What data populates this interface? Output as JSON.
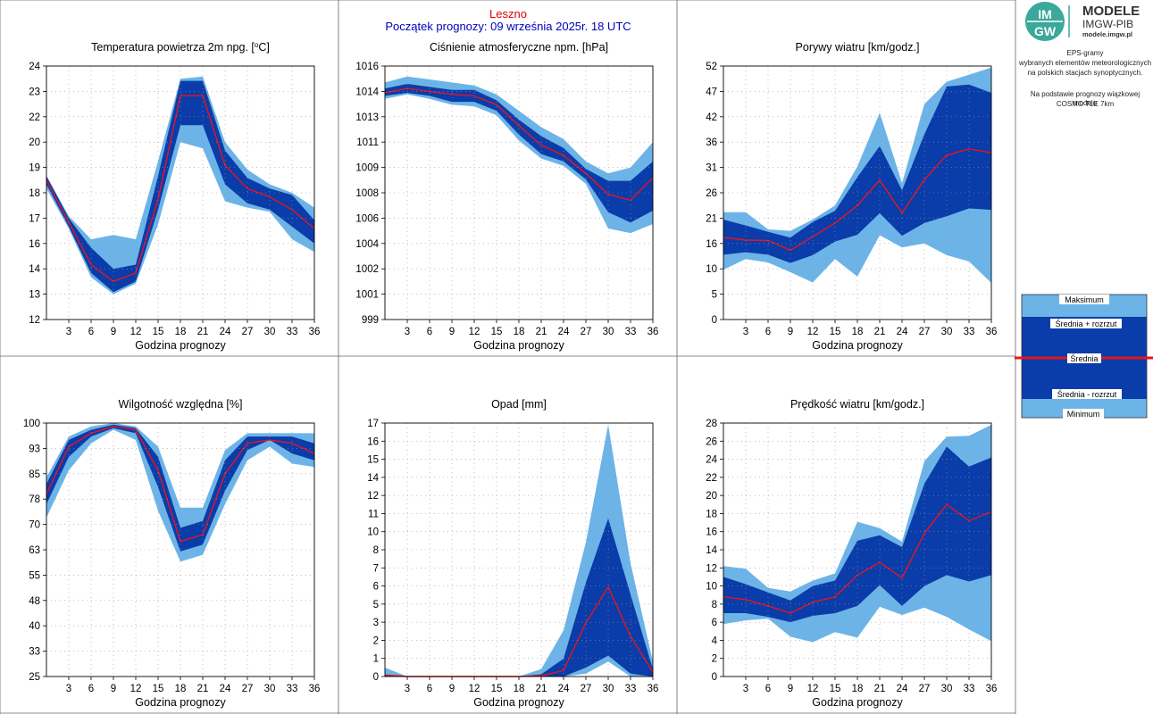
{
  "header": {
    "station": "Leszno",
    "start": "Początek prognozy: 09 września 2025r. 18 UTC"
  },
  "logo": {
    "line1": "MODELE",
    "line2": "IMGW-PIB",
    "line3": "modele.imgw.pl",
    "mark_top": "IM",
    "mark_bottom": "GW"
  },
  "side_text": [
    "EPS-gramy",
    "wybranych elementów meteorologicznych",
    "na polskich stacjach  synoptycznych.",
    "Na podstawie prognozy wiązkowej modelu",
    "COSMO TLE 7km"
  ],
  "legend": {
    "max": "Maksimum",
    "upper": "Średnia + rozrzut",
    "mean": "Średnia",
    "lower": "Średnia - rozrzut",
    "min": "Minimum"
  },
  "colors": {
    "outer_band": "#6cb4e8",
    "inner_band": "#0a3caa",
    "mean_line": "#e8141e",
    "grid": "#999999",
    "frame": "#000000"
  },
  "chart_data": [
    {
      "type": "area",
      "title": "Temperatura powietrza 2m npg. [",
      "title_sup": "o",
      "title_tail": "C]",
      "xlabel": "Godzina prognozy",
      "xlim": [
        0,
        36
      ],
      "ylim": [
        12,
        24
      ],
      "xticks": [
        "3",
        "6",
        "9",
        "12",
        "15",
        "18",
        "21",
        "24",
        "27",
        "30",
        "33",
        "36"
      ],
      "yticks": [
        "12",
        "13",
        "14",
        "16",
        "17",
        "18",
        "19",
        "20",
        "22",
        "23",
        "24"
      ],
      "x": [
        0,
        3,
        6,
        9,
        12,
        15,
        18,
        21,
        24,
        27,
        30,
        33,
        36
      ],
      "min": [
        18.2,
        16.3,
        14.0,
        13.2,
        13.7,
        16.5,
        20.4,
        20.1,
        17.6,
        17.3,
        17.1,
        15.8,
        15.2
      ],
      "lower": [
        18.4,
        16.4,
        14.2,
        13.3,
        13.8,
        17.2,
        21.2,
        21.2,
        18.4,
        17.5,
        17.2,
        16.4,
        15.6
      ],
      "mean": [
        18.6,
        16.6,
        14.6,
        13.8,
        14.2,
        17.7,
        22.6,
        22.6,
        19.3,
        18.2,
        17.8,
        17.2,
        16.3
      ],
      "upper": [
        18.8,
        16.8,
        15.4,
        14.4,
        14.6,
        18.8,
        23.3,
        23.3,
        20.0,
        18.7,
        18.2,
        17.9,
        16.7
      ],
      "max": [
        18.8,
        16.9,
        15.8,
        16.0,
        15.8,
        19.5,
        23.4,
        23.5,
        20.4,
        19.1,
        18.4,
        18.0,
        17.3
      ]
    },
    {
      "type": "area",
      "title": "Ciśnienie atmosferyczne npm. [hPa]",
      "xlabel": "Godzina prognozy",
      "xlim": [
        0,
        36
      ],
      "ylim": [
        999,
        1016
      ],
      "xticks": [
        "3",
        "6",
        "9",
        "12",
        "15",
        "18",
        "21",
        "24",
        "27",
        "30",
        "33",
        "36"
      ],
      "yticks": [
        "999",
        "1001",
        "1002",
        "1004",
        "1006",
        "1008",
        "1009",
        "1011",
        "1013",
        "1014",
        "1016"
      ],
      "x": [
        0,
        3,
        6,
        9,
        12,
        15,
        18,
        21,
        24,
        27,
        30,
        33,
        36
      ],
      "min": [
        1013.8,
        1014.1,
        1013.8,
        1013.4,
        1013.3,
        1012.7,
        1011.0,
        1009.8,
        1009.3,
        1008.1,
        1005.1,
        1004.8,
        1005.4
      ],
      "lower": [
        1014.0,
        1014.2,
        1014.0,
        1013.6,
        1013.6,
        1013.0,
        1011.4,
        1010.1,
        1009.6,
        1008.4,
        1006.2,
        1005.5,
        1006.3
      ],
      "mean": [
        1014.2,
        1014.5,
        1014.3,
        1014.1,
        1014.0,
        1013.4,
        1012.0,
        1010.7,
        1010.0,
        1008.8,
        1007.4,
        1007.0,
        1008.5
      ],
      "upper": [
        1014.5,
        1014.8,
        1014.6,
        1014.4,
        1014.4,
        1013.7,
        1012.4,
        1011.3,
        1010.5,
        1009.1,
        1008.3,
        1008.3,
        1009.6
      ],
      "max": [
        1014.9,
        1015.3,
        1015.1,
        1014.9,
        1014.7,
        1014.1,
        1013.0,
        1011.9,
        1011.1,
        1009.6,
        1008.8,
        1009.2,
        1010.9
      ]
    },
    {
      "type": "area",
      "title": "Porywy wiatru [km/godz.]",
      "xlabel": "Godzina prognozy",
      "xlim": [
        0,
        36
      ],
      "ylim": [
        0,
        52
      ],
      "xticks": [
        "3",
        "6",
        "9",
        "12",
        "15",
        "18",
        "21",
        "24",
        "27",
        "30",
        "33",
        "36"
      ],
      "yticks": [
        "0",
        "5",
        "10",
        "16",
        "21",
        "26",
        "31",
        "36",
        "42",
        "47",
        "52"
      ],
      "x": [
        0,
        3,
        6,
        9,
        12,
        15,
        18,
        21,
        24,
        27,
        30,
        33,
        36
      ],
      "min": [
        10.2,
        12.4,
        11.7,
        9.7,
        7.6,
        12.4,
        8.8,
        17.3,
        14.8,
        15.6,
        13.2,
        11.9,
        7.5
      ],
      "lower": [
        13.3,
        13.8,
        13.3,
        11.6,
        13.2,
        16.0,
        17.4,
        21.8,
        17.2,
        19.8,
        21.2,
        22.8,
        22.5
      ],
      "mean": [
        16.8,
        16.3,
        16.2,
        14.2,
        17.0,
        19.8,
        23.4,
        28.6,
        21.8,
        28.7,
        33.7,
        35.0,
        34.2
      ],
      "upper": [
        20.5,
        19.3,
        18.0,
        16.8,
        20.0,
        22.3,
        29.2,
        35.6,
        26.5,
        38.0,
        47.8,
        48.2,
        46.5
      ],
      "max": [
        22.0,
        22.0,
        18.5,
        18.2,
        20.5,
        23.4,
        31.4,
        42.4,
        28.0,
        44.2,
        48.8,
        50.2,
        51.7
      ]
    },
    {
      "type": "area",
      "title": "Wilgotność względna [%]",
      "xlabel": "Godzina prognozy",
      "xlim": [
        0,
        36
      ],
      "ylim": [
        25,
        100
      ],
      "xticks": [
        "3",
        "6",
        "9",
        "12",
        "15",
        "18",
        "21",
        "24",
        "27",
        "30",
        "33",
        "36"
      ],
      "yticks": [
        "25",
        "33",
        "40",
        "48",
        "55",
        "63",
        "70",
        "78",
        "85",
        "93",
        "100"
      ],
      "x": [
        0,
        3,
        6,
        9,
        12,
        15,
        18,
        21,
        24,
        27,
        30,
        33,
        36
      ],
      "min": [
        72,
        86,
        94,
        98,
        95,
        74,
        59,
        61,
        76,
        89,
        93,
        88,
        87
      ],
      "lower": [
        76,
        90,
        96,
        98.5,
        97,
        81,
        62,
        64,
        80,
        92,
        95,
        91,
        89
      ],
      "mean": [
        79,
        93,
        97,
        99,
        98,
        86,
        65,
        67,
        85,
        94,
        95,
        94,
        91
      ],
      "upper": [
        82,
        95,
        98,
        99.5,
        98.5,
        90,
        69,
        71,
        89,
        96,
        96,
        96,
        94
      ],
      "max": [
        84,
        96,
        99,
        100,
        99,
        93,
        75,
        75,
        92,
        97,
        97,
        97,
        97
      ]
    },
    {
      "type": "area",
      "title": "Opad [mm]",
      "xlabel": "Godzina prognozy",
      "xlim": [
        0,
        36
      ],
      "ylim": [
        0,
        17
      ],
      "xticks": [
        "3",
        "6",
        "9",
        "12",
        "15",
        "18",
        "21",
        "24",
        "27",
        "30",
        "33",
        "36"
      ],
      "yticks": [
        "0",
        "1",
        "2",
        "3",
        "5",
        "6",
        "7",
        "8",
        "10",
        "11",
        "12",
        "14",
        "15",
        "16",
        "17"
      ],
      "x": [
        0,
        3,
        6,
        9,
        12,
        15,
        18,
        21,
        24,
        27,
        30,
        33,
        36
      ],
      "min": [
        0,
        0,
        0,
        0,
        0,
        0,
        0,
        0,
        0,
        0.2,
        1.0,
        0,
        0
      ],
      "lower": [
        0,
        0,
        0,
        0,
        0,
        0,
        0,
        0,
        0,
        0.6,
        1.4,
        0.2,
        0
      ],
      "mean": [
        0.1,
        0,
        0,
        0,
        0,
        0,
        0,
        0.05,
        0.4,
        3.6,
        6.0,
        2.7,
        0.3
      ],
      "upper": [
        0.1,
        0,
        0,
        0,
        0,
        0,
        0,
        0.15,
        1.2,
        6.3,
        10.6,
        5.5,
        0.5
      ],
      "max": [
        0.6,
        0,
        0,
        0,
        0,
        0,
        0,
        0.5,
        3.1,
        9.0,
        16.9,
        7.6,
        1.0
      ]
    },
    {
      "type": "area",
      "title": "Prędkość wiatru [km/godz.]",
      "xlabel": "Godzina prognozy",
      "xlim": [
        0,
        36
      ],
      "ylim": [
        0,
        28
      ],
      "xticks": [
        "3",
        "6",
        "9",
        "12",
        "15",
        "18",
        "21",
        "24",
        "27",
        "30",
        "33",
        "36"
      ],
      "yticks": [
        "0",
        "2",
        "4",
        "6",
        "8",
        "10",
        "12",
        "14",
        "16",
        "18",
        "20",
        "22",
        "24",
        "26",
        "28"
      ],
      "x": [
        0,
        3,
        6,
        9,
        12,
        15,
        18,
        21,
        24,
        27,
        30,
        33,
        36
      ],
      "min": [
        5.8,
        6.2,
        6.4,
        4.4,
        3.8,
        4.9,
        4.3,
        7.7,
        6.8,
        7.6,
        6.6,
        5.2,
        3.9
      ],
      "lower": [
        7.0,
        7.0,
        6.6,
        6.0,
        6.7,
        7.0,
        7.8,
        10.1,
        7.8,
        10.0,
        11.2,
        10.5,
        11.2
      ],
      "mean": [
        8.8,
        8.5,
        7.8,
        7.0,
        8.2,
        8.8,
        11.2,
        12.6,
        10.9,
        15.8,
        19.0,
        17.2,
        18.2
      ],
      "upper": [
        11.0,
        10.2,
        9.3,
        8.4,
        10.0,
        10.6,
        15.0,
        15.6,
        14.3,
        21.3,
        25.4,
        23.2,
        24.2
      ],
      "max": [
        12.2,
        11.9,
        9.8,
        9.4,
        10.6,
        11.4,
        17.1,
        16.4,
        14.9,
        23.8,
        26.5,
        26.6,
        27.8
      ]
    }
  ]
}
